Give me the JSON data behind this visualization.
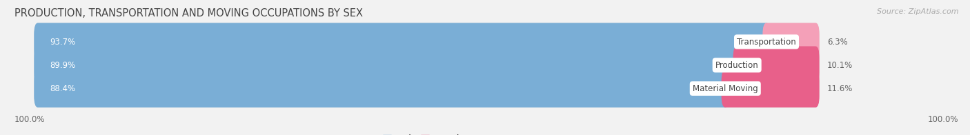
{
  "title": "PRODUCTION, TRANSPORTATION AND MOVING OCCUPATIONS BY SEX",
  "source": "Source: ZipAtlas.com",
  "categories": [
    "Transportation",
    "Production",
    "Material Moving"
  ],
  "male_values": [
    93.7,
    89.9,
    88.4
  ],
  "female_values": [
    6.3,
    10.1,
    11.6
  ],
  "male_color": "#7aaed6",
  "female_color_light": "#f4a0b8",
  "female_color_dark": "#e8608a",
  "background_color": "#f2f2f2",
  "bar_bg_color": "#e2e2e2",
  "title_fontsize": 10.5,
  "source_fontsize": 8,
  "bar_label_fontsize": 8.5,
  "category_fontsize": 8.5,
  "legend_fontsize": 8.5,
  "tick_fontsize": 8.5
}
